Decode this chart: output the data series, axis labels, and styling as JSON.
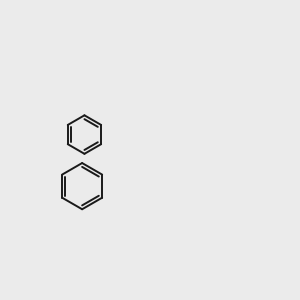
{
  "bg_color": "#ebebeb",
  "bond_color": "#1a1a1a",
  "S_color": "#cccc00",
  "N_color": "#2020cc",
  "O_color": "#cc2020",
  "H_color": "#4a9090",
  "lw": 1.5,
  "lw2": 2.5
}
